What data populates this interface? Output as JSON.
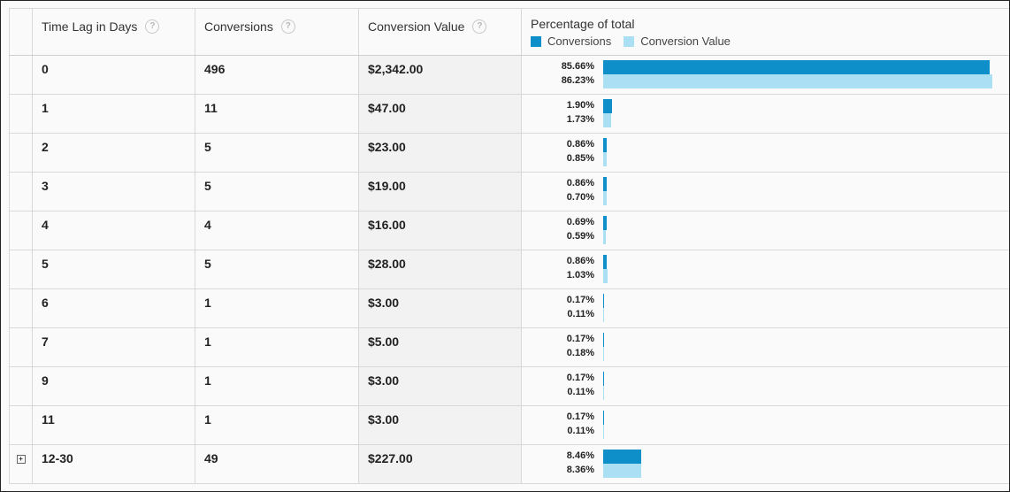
{
  "columns": {
    "time_lag": "Time Lag in Days",
    "conversions": "Conversions",
    "conversion_value": "Conversion Value",
    "percentage": "Percentage of total",
    "help_glyph": "?"
  },
  "legend": {
    "conversions": "Conversions",
    "conversion_value": "Conversion Value",
    "color_conversions": "#0e8fc9",
    "color_value": "#aadff4"
  },
  "expand_glyph": "+",
  "rows": [
    {
      "lag": "0",
      "conversions": "496",
      "value": "$2,342.00",
      "pct_conv": "85.66%",
      "pct_value": "86.23%",
      "conv_frac": 0.8566,
      "value_frac": 0.8623
    },
    {
      "lag": "1",
      "conversions": "11",
      "value": "$47.00",
      "pct_conv": "1.90%",
      "pct_value": "1.73%",
      "conv_frac": 0.019,
      "value_frac": 0.0173
    },
    {
      "lag": "2",
      "conversions": "5",
      "value": "$23.00",
      "pct_conv": "0.86%",
      "pct_value": "0.85%",
      "conv_frac": 0.0086,
      "value_frac": 0.0085
    },
    {
      "lag": "3",
      "conversions": "5",
      "value": "$19.00",
      "pct_conv": "0.86%",
      "pct_value": "0.70%",
      "conv_frac": 0.0086,
      "value_frac": 0.007
    },
    {
      "lag": "4",
      "conversions": "4",
      "value": "$16.00",
      "pct_conv": "0.69%",
      "pct_value": "0.59%",
      "conv_frac": 0.0069,
      "value_frac": 0.0059
    },
    {
      "lag": "5",
      "conversions": "5",
      "value": "$28.00",
      "pct_conv": "0.86%",
      "pct_value": "1.03%",
      "conv_frac": 0.0086,
      "value_frac": 0.0103
    },
    {
      "lag": "6",
      "conversions": "1",
      "value": "$3.00",
      "pct_conv": "0.17%",
      "pct_value": "0.11%",
      "conv_frac": 0.0017,
      "value_frac": 0.0011
    },
    {
      "lag": "7",
      "conversions": "1",
      "value": "$5.00",
      "pct_conv": "0.17%",
      "pct_value": "0.18%",
      "conv_frac": 0.0017,
      "value_frac": 0.0018
    },
    {
      "lag": "9",
      "conversions": "1",
      "value": "$3.00",
      "pct_conv": "0.17%",
      "pct_value": "0.11%",
      "conv_frac": 0.0017,
      "value_frac": 0.0011
    },
    {
      "lag": "11",
      "conversions": "1",
      "value": "$3.00",
      "pct_conv": "0.17%",
      "pct_value": "0.11%",
      "conv_frac": 0.0017,
      "value_frac": 0.0011
    },
    {
      "lag": "12-30",
      "conversions": "49",
      "value": "$227.00",
      "pct_conv": "8.46%",
      "pct_value": "8.36%",
      "conv_frac": 0.0846,
      "value_frac": 0.0836,
      "expandable": true
    }
  ]
}
